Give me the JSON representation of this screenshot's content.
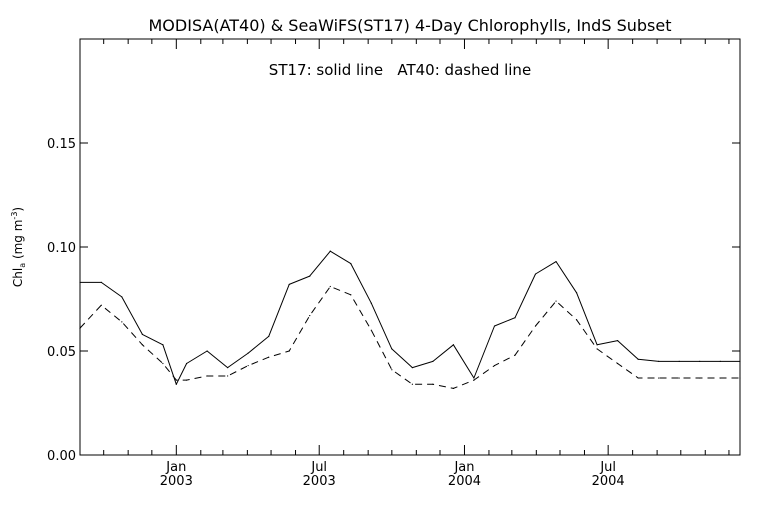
{
  "chart_data": {
    "type": "line",
    "title": "MODISA(AT40) & SeaWiFS(ST17) 4-Day Chlorophylls, IndS Subset",
    "annotation": "ST17: solid line   AT40: dashed line",
    "ylabel_main": "Chl",
    "ylabel_sub": "a",
    "ylabel_units": " (mg m",
    "ylabel_exp": "-3",
    "ylabel_close": ")",
    "ylim": [
      0.0,
      0.2
    ],
    "y_ticks": [
      {
        "value": 0.0,
        "label": "0.00"
      },
      {
        "value": 0.05,
        "label": "0.05"
      },
      {
        "value": 0.1,
        "label": "0.10"
      },
      {
        "value": 0.15,
        "label": "0.15"
      }
    ],
    "xlim": [
      "2002-09-01",
      "2004-12-15"
    ],
    "x_ticks": [
      {
        "date": "2003-01-01",
        "month": "Jan",
        "year": "2003"
      },
      {
        "date": "2003-07-01",
        "month": "Jul",
        "year": "2003"
      },
      {
        "date": "2004-01-01",
        "month": "Jan",
        "year": "2004"
      },
      {
        "date": "2004-07-01",
        "month": "Jul",
        "year": "2004"
      }
    ],
    "x_minor_ticks": [
      "2002-10-01",
      "2002-11-01",
      "2002-12-01",
      "2003-02-01",
      "2003-03-01",
      "2003-04-01",
      "2003-05-01",
      "2003-06-01",
      "2003-08-01",
      "2003-09-01",
      "2003-10-01",
      "2003-11-01",
      "2003-12-01",
      "2004-02-01",
      "2004-03-01",
      "2004-04-01",
      "2004-05-01",
      "2004-06-01",
      "2004-08-01",
      "2004-09-01",
      "2004-10-01",
      "2004-11-01",
      "2004-12-01"
    ],
    "series": [
      {
        "name": "ST17",
        "style": "solid",
        "color": "#000000",
        "x": [
          "2002-09-01",
          "2002-09-28",
          "2002-10-24",
          "2002-11-19",
          "2002-12-15",
          "2003-01-01",
          "2003-01-14",
          "2003-02-09",
          "2003-03-07",
          "2003-04-02",
          "2003-04-28",
          "2003-05-24",
          "2003-06-19",
          "2003-07-15",
          "2003-08-10",
          "2003-09-05",
          "2003-10-01",
          "2003-10-27",
          "2003-11-22",
          "2003-12-18",
          "2004-01-13",
          "2004-02-08",
          "2004-03-05",
          "2004-03-31",
          "2004-04-26",
          "2004-05-22",
          "2004-06-17",
          "2004-07-13",
          "2004-08-08",
          "2004-09-03",
          "2004-09-29",
          "2004-10-25",
          "2004-11-20",
          "2004-12-15"
        ],
        "y": [
          0.083,
          0.083,
          0.076,
          0.058,
          0.053,
          0.034,
          0.044,
          0.05,
          0.042,
          0.049,
          0.057,
          0.082,
          0.086,
          0.098,
          0.092,
          0.073,
          0.051,
          0.042,
          0.045,
          0.053,
          0.037,
          0.062,
          0.066,
          0.087,
          0.093,
          0.078,
          0.053,
          0.055,
          0.046,
          0.045,
          0.045,
          0.045,
          0.045,
          0.045
        ]
      },
      {
        "name": "AT40",
        "style": "dashed",
        "color": "#000000",
        "x": [
          "2002-09-01",
          "2002-09-28",
          "2002-10-24",
          "2002-11-19",
          "2002-12-15",
          "2003-01-01",
          "2003-01-14",
          "2003-02-09",
          "2003-03-07",
          "2003-04-02",
          "2003-04-28",
          "2003-05-24",
          "2003-06-19",
          "2003-07-15",
          "2003-08-10",
          "2003-09-05",
          "2003-10-01",
          "2003-10-27",
          "2003-11-22",
          "2003-12-18",
          "2004-01-13",
          "2004-02-08",
          "2004-03-05",
          "2004-03-31",
          "2004-04-26",
          "2004-05-22",
          "2004-06-17",
          "2004-07-13",
          "2004-08-08",
          "2004-09-03",
          "2004-09-29",
          "2004-10-25",
          "2004-11-20",
          "2004-12-15"
        ],
        "y": [
          0.061,
          0.072,
          0.064,
          0.053,
          0.044,
          0.036,
          0.036,
          0.038,
          0.038,
          0.043,
          0.047,
          0.05,
          0.067,
          0.081,
          0.077,
          0.06,
          0.041,
          0.034,
          0.034,
          0.032,
          0.036,
          0.043,
          0.048,
          0.062,
          0.074,
          0.065,
          0.051,
          0.044,
          0.037,
          0.037,
          0.037,
          0.037,
          0.037,
          0.037
        ]
      }
    ],
    "grid": false,
    "legend": "none"
  }
}
